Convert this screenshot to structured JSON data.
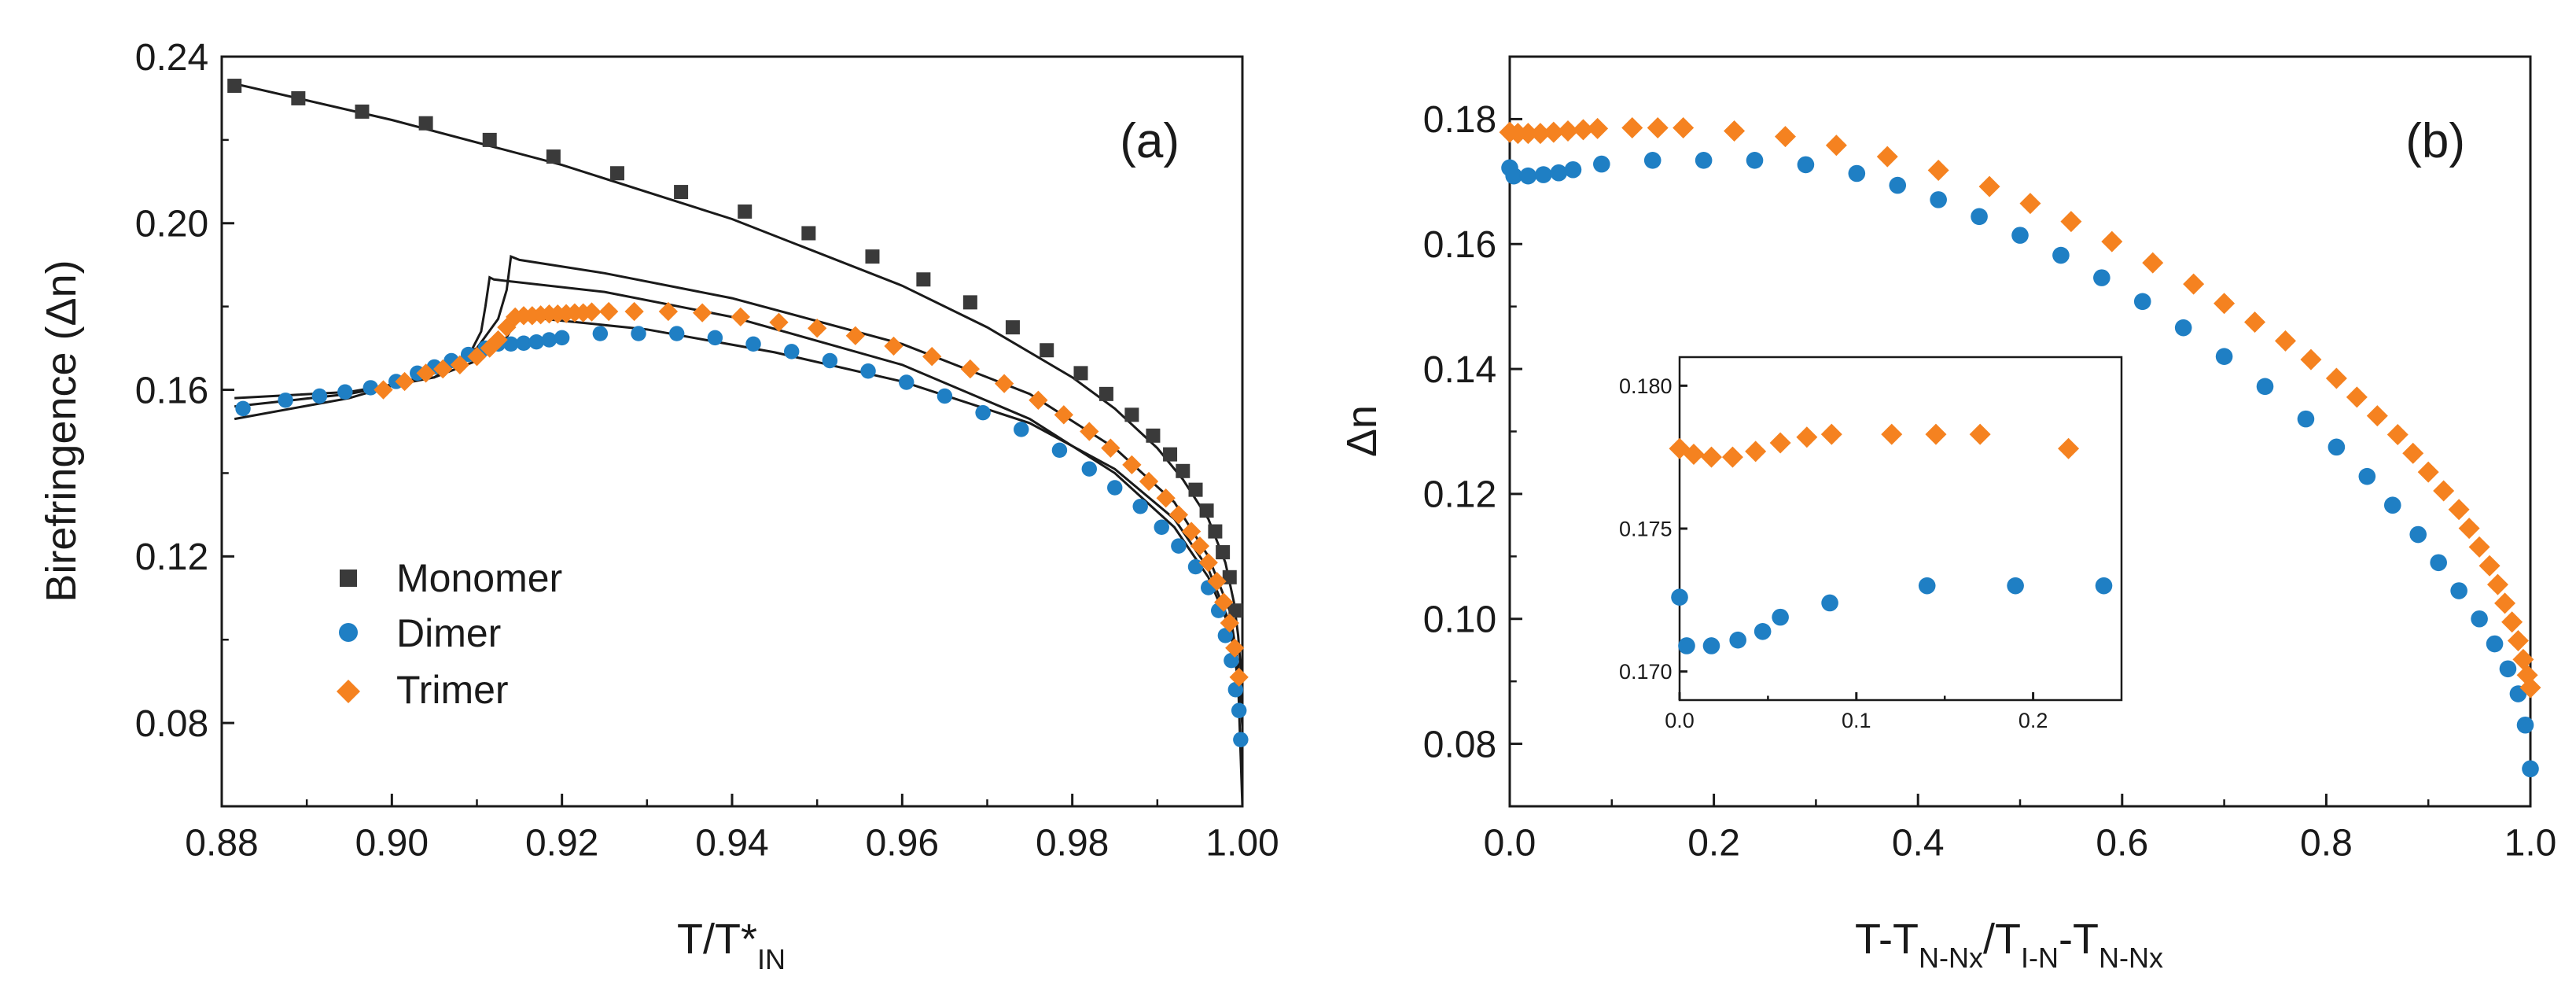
{
  "chart_data": [
    {
      "panel": "a",
      "type": "scatter",
      "panel_label": "(a)",
      "xlabel": "T/T*",
      "xlabel_sub": "IN",
      "ylabel": "Birefringence (Δn)",
      "xlim": [
        0.88,
        1.0
      ],
      "ylim": [
        0.06,
        0.24
      ],
      "xticks": [
        "0.88",
        "0.90",
        "0.92",
        "0.94",
        "0.96",
        "0.98",
        "1.00"
      ],
      "yticks": [
        "0.08",
        "0.12",
        "0.16",
        "0.20",
        "0.24"
      ],
      "xtick_values": [
        0.88,
        0.9,
        0.92,
        0.94,
        0.96,
        0.98,
        1.0
      ],
      "ytick_values": [
        0.08,
        0.12,
        0.16,
        0.2,
        0.24
      ],
      "legend_position": "bottom-left",
      "series": [
        {
          "name": "Monomer",
          "marker": "square",
          "color": "#3a3a3a",
          "x": [
            0.8815,
            0.889,
            0.8965,
            0.904,
            0.9115,
            0.919,
            0.9265,
            0.934,
            0.9415,
            0.949,
            0.9565,
            0.9625,
            0.968,
            0.973,
            0.977,
            0.981,
            0.984,
            0.987,
            0.9895,
            0.9915,
            0.993,
            0.9945,
            0.9958,
            0.9968,
            0.9977,
            0.9985,
            0.9992
          ],
          "y": [
            0.233,
            0.23,
            0.2268,
            0.224,
            0.22,
            0.216,
            0.212,
            0.2075,
            0.2028,
            0.1976,
            0.192,
            0.1865,
            0.181,
            0.175,
            0.1695,
            0.164,
            0.159,
            0.154,
            0.149,
            0.1445,
            0.1405,
            0.136,
            0.131,
            0.126,
            0.121,
            0.115,
            0.107
          ]
        },
        {
          "name": "Dimer",
          "marker": "circle",
          "color": "#1f7fc4",
          "x": [
            0.8825,
            0.8875,
            0.8915,
            0.8945,
            0.8975,
            0.9005,
            0.903,
            0.905,
            0.907,
            0.909,
            0.911,
            0.9125,
            0.914,
            0.9155,
            0.917,
            0.9185,
            0.92,
            0.9245,
            0.929,
            0.9335,
            0.938,
            0.9425,
            0.947,
            0.9515,
            0.956,
            0.9605,
            0.965,
            0.9695,
            0.974,
            0.9785,
            0.982,
            0.985,
            0.988,
            0.9905,
            0.9925,
            0.9945,
            0.996,
            0.9972,
            0.998,
            0.9987,
            0.9992,
            0.9996,
            0.9998
          ],
          "y": [
            0.1555,
            0.1575,
            0.1585,
            0.1595,
            0.1605,
            0.162,
            0.164,
            0.1655,
            0.167,
            0.1685,
            0.17,
            0.171,
            0.171,
            0.1712,
            0.1715,
            0.172,
            0.1725,
            0.1735,
            0.1735,
            0.1735,
            0.1725,
            0.171,
            0.1692,
            0.167,
            0.1645,
            0.1618,
            0.1585,
            0.1545,
            0.1505,
            0.1455,
            0.141,
            0.1365,
            0.132,
            0.127,
            0.1225,
            0.1175,
            0.1125,
            0.107,
            0.101,
            0.095,
            0.088,
            0.083,
            0.076
          ]
        },
        {
          "name": "Trimer",
          "marker": "diamond",
          "color": "#f58220",
          "x": [
            0.899,
            0.9015,
            0.904,
            0.906,
            0.908,
            0.91,
            0.9115,
            0.9125,
            0.9135,
            0.9145,
            0.9155,
            0.9165,
            0.9175,
            0.9185,
            0.9195,
            0.9205,
            0.9215,
            0.9225,
            0.9235,
            0.9255,
            0.9285,
            0.9325,
            0.9365,
            0.941,
            0.9455,
            0.95,
            0.9545,
            0.959,
            0.9635,
            0.968,
            0.972,
            0.976,
            0.979,
            0.982,
            0.9845,
            0.987,
            0.989,
            0.991,
            0.9925,
            0.994,
            0.995,
            0.996,
            0.997,
            0.9978,
            0.9985,
            0.9991,
            0.9996
          ],
          "y": [
            0.16,
            0.162,
            0.164,
            0.165,
            0.166,
            0.168,
            0.17,
            0.172,
            0.175,
            0.1775,
            0.1778,
            0.1778,
            0.178,
            0.1782,
            0.1782,
            0.1783,
            0.1785,
            0.1785,
            0.1787,
            0.1788,
            0.1788,
            0.1788,
            0.1785,
            0.1775,
            0.1762,
            0.1748,
            0.173,
            0.1705,
            0.168,
            0.165,
            0.1615,
            0.1575,
            0.154,
            0.15,
            0.146,
            0.142,
            0.138,
            0.134,
            0.13,
            0.126,
            0.1225,
            0.1185,
            0.114,
            0.109,
            0.104,
            0.098,
            0.091
          ]
        }
      ],
      "fit_curves": [
        {
          "x": [
            0.8815,
            0.9,
            0.92,
            0.94,
            0.96,
            0.97,
            0.98,
            0.985,
            0.99,
            0.993,
            0.996,
            0.998,
            0.999,
            0.9995,
            1.0
          ],
          "y": [
            0.2335,
            0.2248,
            0.214,
            0.201,
            0.185,
            0.175,
            0.163,
            0.1555,
            0.146,
            0.1385,
            0.129,
            0.1185,
            0.109,
            0.101,
            0.088
          ]
        },
        {
          "x": [
            0.8815,
            0.895,
            0.905,
            0.909,
            0.9105,
            0.911,
            0.9115,
            0.912,
            0.925,
            0.94,
            0.96,
            0.975,
            0.985,
            0.992,
            0.996,
            0.9985,
            0.9995,
            1.0
          ],
          "y": [
            0.158,
            0.1595,
            0.163,
            0.168,
            0.174,
            0.18,
            0.187,
            0.1865,
            0.1835,
            0.1775,
            0.166,
            0.153,
            0.14,
            0.127,
            0.115,
            0.103,
            0.092,
            0.082
          ]
        },
        {
          "x": [
            0.8815,
            0.895,
            0.905,
            0.91,
            0.9125,
            0.9135,
            0.914,
            0.915,
            0.925,
            0.94,
            0.96,
            0.975,
            0.985,
            0.992,
            0.996,
            0.9985,
            0.9995,
            1.0
          ],
          "y": [
            0.153,
            0.158,
            0.164,
            0.17,
            0.177,
            0.184,
            0.192,
            0.1912,
            0.188,
            0.182,
            0.171,
            0.159,
            0.146,
            0.133,
            0.12,
            0.107,
            0.094,
            0.079
          ]
        },
        {
          "x": [
            0.8815,
            0.895,
            0.905,
            0.91,
            0.913,
            0.9145,
            0.9155,
            0.918,
            0.93,
            0.945,
            0.96,
            0.975,
            0.985,
            0.992,
            0.996,
            0.9985,
            0.9995,
            1.0
          ],
          "y": [
            0.156,
            0.159,
            0.163,
            0.167,
            0.171,
            0.176,
            0.1775,
            0.177,
            0.1745,
            0.169,
            0.162,
            0.152,
            0.141,
            0.129,
            0.117,
            0.104,
            0.09,
            0.06
          ]
        }
      ]
    },
    {
      "panel": "b",
      "type": "scatter",
      "panel_label": "(b)",
      "xlabel_parts": [
        "T-T",
        "N-Nx",
        "/T",
        "I-N",
        "-T",
        "N-Nx"
      ],
      "ylabel": "Δn",
      "xlim": [
        0.0,
        1.0
      ],
      "ylim": [
        0.07,
        0.19
      ],
      "xticks": [
        "0.0",
        "0.2",
        "0.4",
        "0.6",
        "0.8",
        "1.0"
      ],
      "yticks": [
        "0.08",
        "0.10",
        "0.12",
        "0.14",
        "0.16",
        "0.18"
      ],
      "xtick_values": [
        0.0,
        0.2,
        0.4,
        0.6,
        0.8,
        1.0
      ],
      "ytick_values": [
        0.08,
        0.1,
        0.12,
        0.14,
        0.16,
        0.18
      ],
      "series": [
        {
          "name": "Dimer",
          "marker": "circle",
          "color": "#1f7fc4",
          "x": [
            0.0,
            0.004,
            0.018,
            0.033,
            0.048,
            0.062,
            0.09,
            0.14,
            0.19,
            0.24,
            0.29,
            0.34,
            0.38,
            0.42,
            0.46,
            0.5,
            0.54,
            0.58,
            0.62,
            0.66,
            0.7,
            0.74,
            0.78,
            0.81,
            0.84,
            0.865,
            0.89,
            0.91,
            0.93,
            0.95,
            0.965,
            0.978,
            0.988,
            0.995,
            1.0
          ],
          "y": [
            0.1722,
            0.1709,
            0.1709,
            0.1711,
            0.1714,
            0.1719,
            0.1728,
            0.1734,
            0.1734,
            0.1734,
            0.1727,
            0.1713,
            0.1694,
            0.1671,
            0.1644,
            0.1614,
            0.1582,
            0.1546,
            0.1508,
            0.1466,
            0.142,
            0.1372,
            0.132,
            0.1275,
            0.1228,
            0.1182,
            0.1135,
            0.109,
            0.1045,
            0.1,
            0.096,
            0.092,
            0.088,
            0.083,
            0.076
          ]
        },
        {
          "name": "Trimer",
          "marker": "diamond",
          "color": "#f58220",
          "x": [
            0.0,
            0.008,
            0.018,
            0.03,
            0.043,
            0.057,
            0.072,
            0.086,
            0.12,
            0.145,
            0.17,
            0.22,
            0.27,
            0.32,
            0.37,
            0.42,
            0.47,
            0.51,
            0.55,
            0.59,
            0.63,
            0.67,
            0.7,
            0.73,
            0.76,
            0.785,
            0.81,
            0.83,
            0.85,
            0.87,
            0.885,
            0.9,
            0.915,
            0.93,
            0.94,
            0.95,
            0.96,
            0.968,
            0.975,
            0.982,
            0.988,
            0.993,
            0.997,
            1.0
          ],
          "y": [
            0.1779,
            0.1777,
            0.1777,
            0.1777,
            0.1779,
            0.1781,
            0.1783,
            0.1785,
            0.1786,
            0.1786,
            0.1786,
            0.1781,
            0.1772,
            0.1758,
            0.174,
            0.1718,
            0.1692,
            0.1665,
            0.1636,
            0.1604,
            0.157,
            0.1536,
            0.1505,
            0.1475,
            0.1445,
            0.1415,
            0.1385,
            0.1355,
            0.1325,
            0.1295,
            0.1265,
            0.1235,
            0.1205,
            0.1175,
            0.1145,
            0.1115,
            0.1085,
            0.1055,
            0.1025,
            0.0995,
            0.0965,
            0.0935,
            0.091,
            0.089
          ]
        }
      ],
      "inset": {
        "xlim": [
          0.0,
          0.25
        ],
        "ylim": [
          0.169,
          0.181
        ],
        "xticks": [
          "0.0",
          "0.1",
          "0.2"
        ],
        "yticks": [
          "0.170",
          "0.175",
          "0.180"
        ],
        "xtick_values": [
          0.0,
          0.1,
          0.2
        ],
        "ytick_values": [
          0.17,
          0.175,
          0.18
        ],
        "series": [
          {
            "name": "Dimer",
            "marker": "circle",
            "color": "#1f7fc4",
            "x": [
              0.0,
              0.004,
              0.018,
              0.033,
              0.047,
              0.057,
              0.085,
              0.14,
              0.19,
              0.24
            ],
            "y": [
              0.1726,
              0.1709,
              0.1709,
              0.1711,
              0.1714,
              0.1719,
              0.1724,
              0.173,
              0.173,
              0.173
            ]
          },
          {
            "name": "Trimer",
            "marker": "diamond",
            "color": "#f58220",
            "x": [
              0.0,
              0.008,
              0.018,
              0.03,
              0.043,
              0.057,
              0.072,
              0.086,
              0.12,
              0.145,
              0.17,
              0.22
            ],
            "y": [
              0.1778,
              0.1776,
              0.1775,
              0.1775,
              0.1777,
              0.178,
              0.1782,
              0.1783,
              0.1783,
              0.1783,
              0.1783,
              0.1778
            ]
          }
        ]
      }
    }
  ]
}
